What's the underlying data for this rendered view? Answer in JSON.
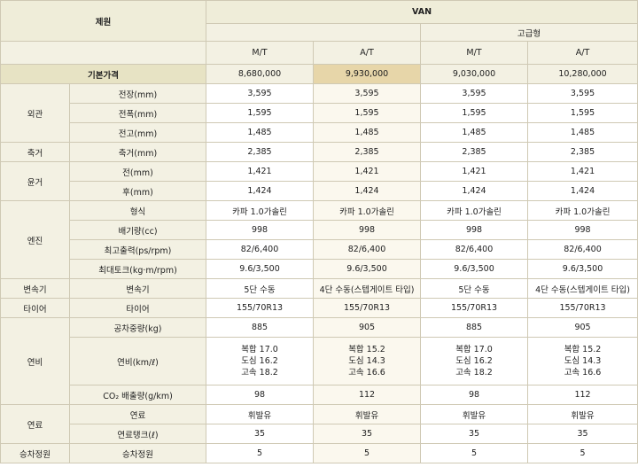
{
  "header": {
    "spec_label": "제원",
    "van": "VAN",
    "premium": "고급형",
    "trans": [
      "M/T",
      "A/T",
      "M/T",
      "A/T"
    ]
  },
  "price": {
    "label": "기본가격",
    "values": [
      "8,680,000",
      "9,930,000",
      "9,030,000",
      "10,280,000"
    ]
  },
  "groups": {
    "exterior": "외관",
    "axle": "축거",
    "tread": "윤거",
    "engine": "엔진",
    "transmission": "변속기",
    "tire": "타이어",
    "economy": "연비",
    "fuel": "연료",
    "seating": "승차정원"
  },
  "rows": {
    "length": {
      "label": "전장(mm)",
      "values": [
        "3,595",
        "3,595",
        "3,595",
        "3,595"
      ]
    },
    "width": {
      "label": "전폭(mm)",
      "values": [
        "1,595",
        "1,595",
        "1,595",
        "1,595"
      ]
    },
    "height": {
      "label": "전고(mm)",
      "values": [
        "1,485",
        "1,485",
        "1,485",
        "1,485"
      ]
    },
    "wheelbase": {
      "label": "축거(mm)",
      "values": [
        "2,385",
        "2,385",
        "2,385",
        "2,385"
      ]
    },
    "tread_front": {
      "label": "전(mm)",
      "values": [
        "1,421",
        "1,421",
        "1,421",
        "1,421"
      ]
    },
    "tread_rear": {
      "label": "후(mm)",
      "values": [
        "1,424",
        "1,424",
        "1,424",
        "1,424"
      ]
    },
    "engine_type": {
      "label": "형식",
      "values": [
        "카파 1.0가솔린",
        "카파 1.0가솔린",
        "카파 1.0가솔린",
        "카파 1.0가솔린"
      ]
    },
    "displacement": {
      "label": "배기량(cc)",
      "values": [
        "998",
        "998",
        "998",
        "998"
      ]
    },
    "max_power": {
      "label": "최고출력(ps/rpm)",
      "values": [
        "82/6,400",
        "82/6,400",
        "82/6,400",
        "82/6,400"
      ]
    },
    "max_torque": {
      "label": "최대토크(kg·m/rpm)",
      "values": [
        "9.6/3,500",
        "9.6/3,500",
        "9.6/3,500",
        "9.6/3,500"
      ]
    },
    "transmission": {
      "label": "변속기",
      "values": [
        "5단 수동",
        "4단 수동(스텝게이트 타입)",
        "5단 수동",
        "4단 수동(스텝게이트 타입)"
      ]
    },
    "tire": {
      "label": "타이어",
      "values": [
        "155/70R13",
        "155/70R13",
        "155/70R13",
        "155/70R13"
      ]
    },
    "curb_weight": {
      "label": "공차중량(kg)",
      "values": [
        "885",
        "905",
        "885",
        "905"
      ]
    },
    "fuel_economy": {
      "label": "연비(km/ℓ)",
      "values": [
        [
          "복합 17.0",
          "도심 16.2",
          "고속 18.2"
        ],
        [
          "복합 15.2",
          "도심 14.3",
          "고속 16.6"
        ],
        [
          "복합 17.0",
          "도심 16.2",
          "고속 18.2"
        ],
        [
          "복합 15.2",
          "도심 14.3",
          "고속 16.6"
        ]
      ]
    },
    "co2": {
      "label": "CO₂ 배출량(g/km)",
      "values": [
        "98",
        "112",
        "98",
        "112"
      ]
    },
    "fuel_type": {
      "label": "연료",
      "values": [
        "휘발유",
        "휘발유",
        "휘발유",
        "휘발유"
      ]
    },
    "fuel_tank": {
      "label": "연료탱크(ℓ)",
      "values": [
        "35",
        "35",
        "35",
        "35"
      ]
    },
    "seating": {
      "label": "승차정원",
      "values": [
        "5",
        "5",
        "5",
        "5"
      ]
    }
  }
}
